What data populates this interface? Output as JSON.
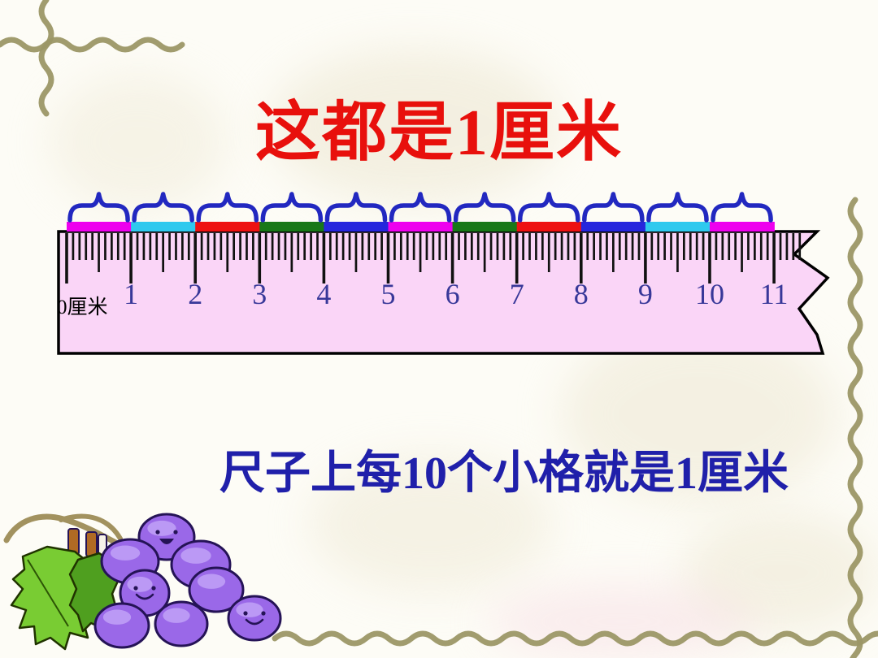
{
  "slide": {
    "title": "这都是1厘米",
    "subtitle": "尺子上每10个小格就是1厘米"
  },
  "ruler": {
    "zero_label": "0厘米",
    "cm_labels": [
      "1",
      "2",
      "3",
      "4",
      "5",
      "6",
      "7",
      "8",
      "9",
      "10",
      "11"
    ],
    "cm_count": 11,
    "mm_per_cm": 10,
    "segment_colors": [
      "#ee00ee",
      "#2fc9ee",
      "#ee1111",
      "#187818",
      "#2626dd",
      "#ee00ee",
      "#187818",
      "#ee1111",
      "#2626dd",
      "#2fc9ee",
      "#ee00ee"
    ],
    "body_color": "#fad5f7",
    "border_color": "#000000",
    "tick_color": "#111111",
    "number_color": "#383899",
    "zero_label_color": "#000000",
    "brace_color": "#2228c0"
  },
  "colors": {
    "title": "#e8100c",
    "subtitle": "#2020aa",
    "background": "#fdfcf6",
    "watermark": "#ece6d0",
    "vine": "#9c9766",
    "grape_body": "#9a68e8",
    "grape_highlight": "#bd9cf6",
    "grape_outline": "#251356",
    "leaf": "#79cc33",
    "leaf_dark": "#4f9f1f",
    "stem": "#a2925f",
    "stem_stub": "#b06a24"
  }
}
